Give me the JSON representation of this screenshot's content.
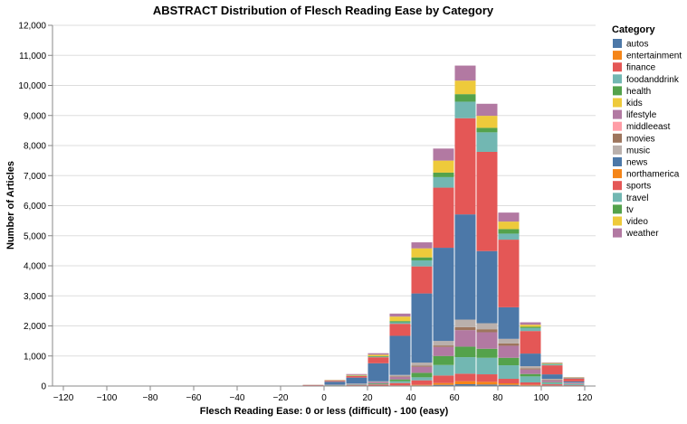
{
  "chart_data": {
    "type": "bar",
    "stacked": true,
    "title": "ABSTRACT Distribution of Flesch Reading Ease by Category",
    "xlabel": "Flesch Reading Ease: 0 or less (difficult) - 100 (easy)",
    "ylabel": "Number of Articles",
    "xlim": [
      -125,
      125
    ],
    "ylim": [
      0,
      12000
    ],
    "x_ticks": [
      -120,
      -100,
      -80,
      -60,
      -40,
      -20,
      0,
      20,
      40,
      60,
      80,
      100,
      120
    ],
    "y_ticks": [
      0,
      1000,
      2000,
      3000,
      4000,
      5000,
      6000,
      7000,
      8000,
      9000,
      10000,
      11000,
      12000
    ],
    "y_tick_labels": [
      "0",
      "1,000",
      "2,000",
      "3,000",
      "4,000",
      "5,000",
      "6,000",
      "7,000",
      "8,000",
      "9,000",
      "10,000",
      "11,000",
      "12,000"
    ],
    "grid": true,
    "legend": {
      "title": "Category",
      "position": "right"
    },
    "bin_width": 10,
    "bins": [
      -10,
      0,
      10,
      20,
      30,
      40,
      50,
      60,
      70,
      80,
      90,
      100,
      110
    ],
    "series": [
      {
        "name": "autos",
        "color": "#4c78a8",
        "values": [
          2,
          3,
          5,
          8,
          10,
          20,
          40,
          60,
          50,
          40,
          20,
          10,
          5
        ]
      },
      {
        "name": "entertainment",
        "color": "#f58518",
        "values": [
          0,
          1,
          3,
          4,
          10,
          20,
          60,
          100,
          90,
          50,
          20,
          8,
          3
        ]
      },
      {
        "name": "finance",
        "color": "#e45756",
        "values": [
          2,
          10,
          20,
          40,
          80,
          150,
          250,
          250,
          250,
          150,
          80,
          40,
          20
        ]
      },
      {
        "name": "foodanddrink",
        "color": "#72b7b2",
        "values": [
          1,
          8,
          10,
          20,
          60,
          100,
          350,
          550,
          550,
          450,
          200,
          50,
          30
        ]
      },
      {
        "name": "health",
        "color": "#54a24b",
        "values": [
          1,
          5,
          10,
          20,
          60,
          150,
          300,
          350,
          300,
          250,
          80,
          20,
          10
        ]
      },
      {
        "name": "kids",
        "color": "#eeca3b",
        "values": [
          0,
          0,
          0,
          0,
          0,
          0,
          0,
          0,
          0,
          0,
          0,
          0,
          0
        ]
      },
      {
        "name": "lifestyle",
        "color": "#b279a2",
        "values": [
          2,
          10,
          20,
          40,
          80,
          200,
          300,
          550,
          550,
          400,
          150,
          60,
          30
        ]
      },
      {
        "name": "middleeast",
        "color": "#ff9da6",
        "values": [
          0,
          0,
          0,
          0,
          0,
          0,
          0,
          0,
          0,
          0,
          0,
          0,
          0
        ]
      },
      {
        "name": "movies",
        "color": "#9d755d",
        "values": [
          0,
          2,
          3,
          5,
          20,
          40,
          50,
          100,
          100,
          80,
          40,
          20,
          5
        ]
      },
      {
        "name": "music",
        "color": "#bab0ac",
        "values": [
          1,
          5,
          10,
          20,
          50,
          100,
          150,
          250,
          200,
          150,
          70,
          30,
          10
        ]
      },
      {
        "name": "news",
        "color": "#4c78a8",
        "values": [
          10,
          100,
          200,
          600,
          1300,
          2300,
          3100,
          3500,
          2400,
          1050,
          420,
          150,
          40
        ]
      },
      {
        "name": "northamerica",
        "color": "#f58518",
        "values": [
          0,
          0,
          0,
          0,
          0,
          0,
          0,
          0,
          0,
          0,
          0,
          0,
          0
        ]
      },
      {
        "name": "sports",
        "color": "#e45756",
        "values": [
          15,
          30,
          50,
          200,
          400,
          900,
          2000,
          3200,
          3300,
          2250,
          750,
          300,
          100
        ]
      },
      {
        "name": "travel",
        "color": "#72b7b2",
        "values": [
          2,
          5,
          10,
          20,
          50,
          200,
          350,
          550,
          650,
          200,
          100,
          40,
          20
        ]
      },
      {
        "name": "tv",
        "color": "#54a24b",
        "values": [
          1,
          5,
          8,
          15,
          40,
          100,
          150,
          250,
          150,
          150,
          40,
          15,
          5
        ]
      },
      {
        "name": "video",
        "color": "#eeca3b",
        "values": [
          3,
          10,
          20,
          50,
          150,
          300,
          400,
          450,
          400,
          250,
          70,
          20,
          10
        ]
      },
      {
        "name": "weather",
        "color": "#b279a2",
        "values": [
          5,
          10,
          30,
          50,
          100,
          200,
          400,
          500,
          400,
          300,
          80,
          20,
          10
        ]
      }
    ]
  }
}
